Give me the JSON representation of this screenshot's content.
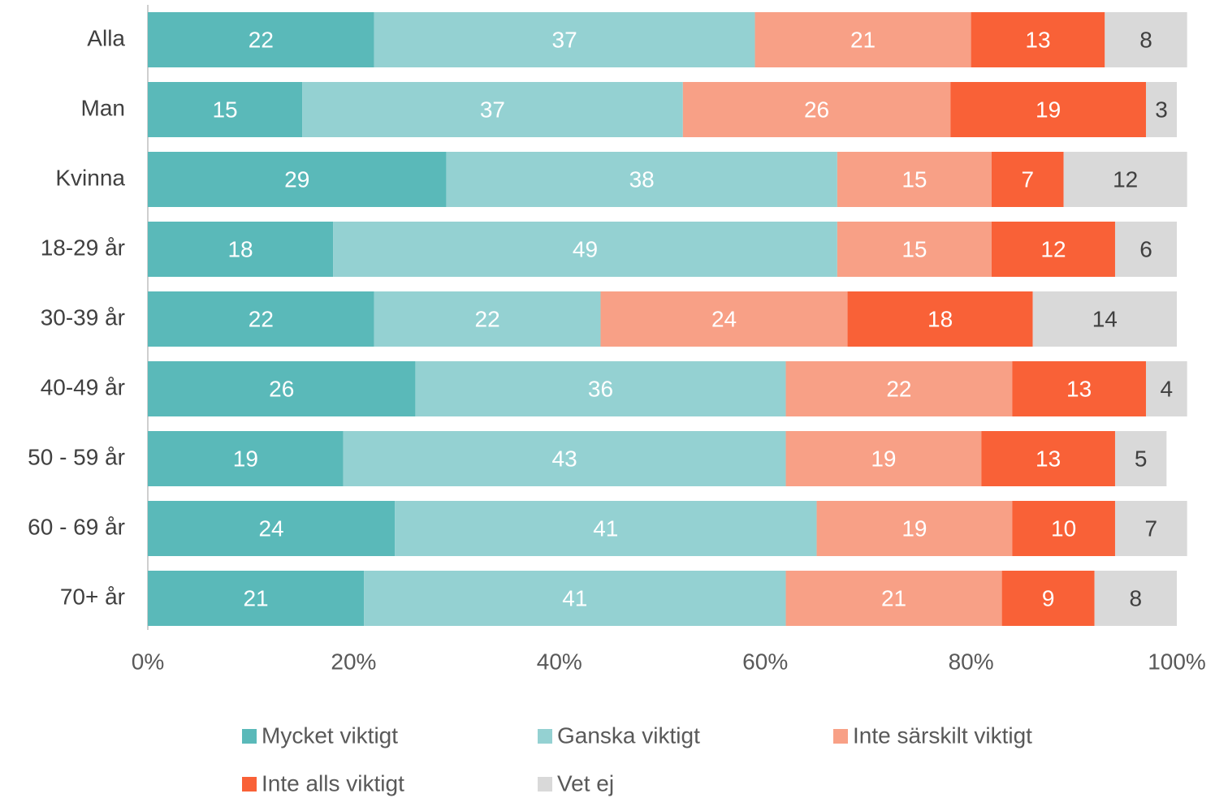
{
  "chart_data": {
    "type": "stacked_barh",
    "categories": [
      "Alla",
      "Man",
      "Kvinna",
      "18-29 år",
      "30-39 år",
      "40-49 år",
      "50 - 59 år",
      "60 - 69 år",
      "70+ år"
    ],
    "series": [
      {
        "name": "Mycket viktigt",
        "color": "#5ab9b9",
        "label_color": "#ffffff",
        "values": [
          22,
          15,
          29,
          18,
          22,
          26,
          19,
          24,
          21
        ]
      },
      {
        "name": "Ganska viktigt",
        "color": "#94d1d2",
        "label_color": "#ffffff",
        "values": [
          37,
          37,
          38,
          49,
          22,
          36,
          43,
          41,
          41
        ]
      },
      {
        "name": "Inte särskilt viktigt",
        "color": "#f8a086",
        "label_color": "#ffffff",
        "values": [
          21,
          26,
          15,
          15,
          24,
          22,
          19,
          19,
          21
        ]
      },
      {
        "name": "Inte alls viktigt",
        "color": "#f96137",
        "label_color": "#ffffff",
        "values": [
          13,
          19,
          7,
          12,
          18,
          13,
          13,
          10,
          9
        ]
      },
      {
        "name": "Vet ej",
        "color": "#d9d9d9",
        "label_color": "#404040",
        "values": [
          8,
          3,
          12,
          6,
          14,
          4,
          5,
          7,
          8
        ]
      }
    ],
    "xlim": [
      0,
      100
    ],
    "xticks": [
      {
        "value": 0,
        "label": "0%"
      },
      {
        "value": 20,
        "label": "20%"
      },
      {
        "value": 40,
        "label": "40%"
      },
      {
        "value": 60,
        "label": "60%"
      },
      {
        "value": 80,
        "label": "80%"
      },
      {
        "value": 100,
        "label": "100%"
      }
    ],
    "legend": "bottom"
  }
}
